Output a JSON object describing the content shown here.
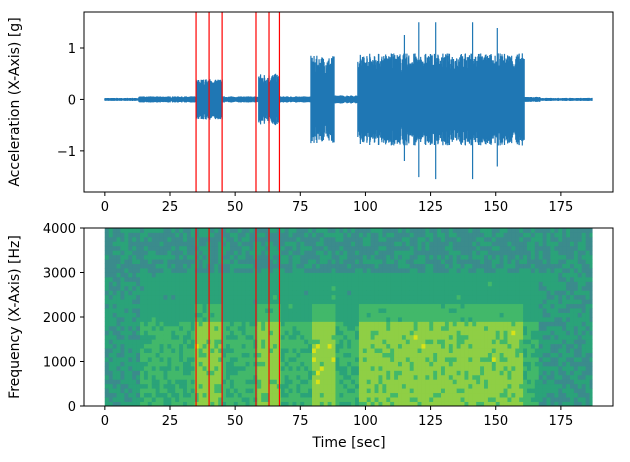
{
  "chart_data": [
    {
      "type": "line",
      "description": "Accelerometer waveform vs time",
      "ylabel": "Acceleration (X-Axis) [g]",
      "xlabel": "",
      "xlim": [
        -8,
        195
      ],
      "ylim": [
        -1.8,
        1.7
      ],
      "x_ticks": [
        0,
        25,
        50,
        75,
        100,
        125,
        150,
        175
      ],
      "y_ticks": [
        -1,
        0,
        1
      ],
      "y_tick_labels": [
        "−1",
        "0",
        "1"
      ],
      "series_color": "#1f77b4",
      "marker_color": "#ff0000",
      "event_markers_sec": [
        35,
        40,
        45,
        58,
        63,
        67
      ],
      "envelope": [
        {
          "t0": 0,
          "t1": 13,
          "amp": 0.03
        },
        {
          "t0": 13,
          "t1": 35,
          "amp": 0.06
        },
        {
          "t0": 35,
          "t1": 45,
          "amp": 0.4
        },
        {
          "t0": 45,
          "t1": 59,
          "amp": 0.06
        },
        {
          "t0": 59,
          "t1": 67,
          "amp": 0.5
        },
        {
          "t0": 67,
          "t1": 79,
          "amp": 0.06
        },
        {
          "t0": 79,
          "t1": 88,
          "amp": 0.85
        },
        {
          "t0": 88,
          "t1": 97,
          "amp": 0.08
        },
        {
          "t0": 97,
          "t1": 161,
          "amp": 0.9
        },
        {
          "t0": 161,
          "t1": 167,
          "amp": 0.05
        },
        {
          "t0": 167,
          "t1": 187,
          "amp": 0.03
        }
      ]
    },
    {
      "type": "heatmap",
      "description": "Spectrogram of X-Axis acceleration",
      "ylabel": "Frequency (X-Axis) [Hz]",
      "xlabel": "Time [sec]",
      "xlim": [
        -8,
        195
      ],
      "ylim": [
        0,
        4000
      ],
      "x_ticks": [
        0,
        25,
        50,
        75,
        100,
        125,
        150,
        175
      ],
      "y_ticks": [
        0,
        1000,
        2000,
        3000,
        4000
      ],
      "data_extent_sec": [
        0,
        187
      ],
      "marker_color": "#ff0000",
      "event_markers_sec": [
        35,
        40,
        45,
        58,
        63,
        67
      ],
      "colormap": [
        "#3b8b8c",
        "#2aa379",
        "#42b86a",
        "#8fcf45",
        "#d8e219"
      ]
    }
  ]
}
